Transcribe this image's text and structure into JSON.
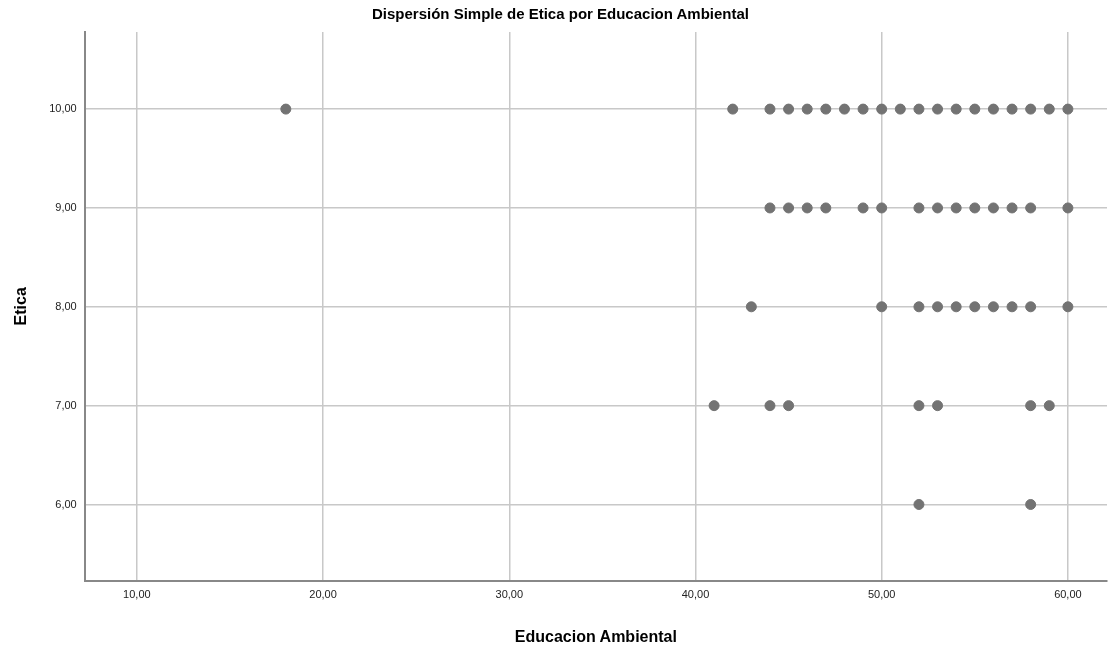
{
  "chart_data": {
    "type": "scatter",
    "title": "Dispersión Simple de Etica por Educacion Ambiental",
    "xlabel": "Educacion Ambiental",
    "ylabel": "Etica",
    "x": [
      18,
      42,
      44,
      45,
      46,
      47,
      48,
      49,
      50,
      51,
      52,
      53,
      54,
      55,
      56,
      57,
      58,
      59,
      60,
      44,
      45,
      46,
      47,
      49,
      50,
      52,
      53,
      54,
      55,
      56,
      57,
      58,
      60,
      43,
      50,
      52,
      53,
      54,
      55,
      56,
      57,
      58,
      60,
      41,
      44,
      45,
      52,
      53,
      58,
      59,
      52,
      58
    ],
    "values": [
      10,
      10,
      10,
      10,
      10,
      10,
      10,
      10,
      10,
      10,
      10,
      10,
      10,
      10,
      10,
      10,
      10,
      10,
      10,
      9,
      9,
      9,
      9,
      9,
      9,
      9,
      9,
      9,
      9,
      9,
      9,
      9,
      9,
      8,
      8,
      8,
      8,
      8,
      8,
      8,
      8,
      8,
      8,
      7,
      7,
      7,
      7,
      7,
      7,
      7,
      6,
      6
    ],
    "color": "#737373",
    "marker": "circle",
    "xlim": [
      7.2,
      62.1
    ],
    "xticks": [
      {
        "value": 10,
        "label": "10,00"
      },
      {
        "value": 20,
        "label": "20,00"
      },
      {
        "value": 30,
        "label": "30,00"
      },
      {
        "value": 40,
        "label": "40,00"
      },
      {
        "value": 50,
        "label": "50,00"
      },
      {
        "value": 60,
        "label": "60,00"
      }
    ],
    "ylim": [
      5.23,
      10.78
    ],
    "yticks": [
      {
        "value": 6,
        "label": "6,00"
      },
      {
        "value": 7,
        "label": "7,00"
      },
      {
        "value": 8,
        "label": "8,00"
      },
      {
        "value": 9,
        "label": "9,00"
      },
      {
        "value": 10,
        "label": "10,00"
      }
    ],
    "grid": true,
    "legend": false
  }
}
